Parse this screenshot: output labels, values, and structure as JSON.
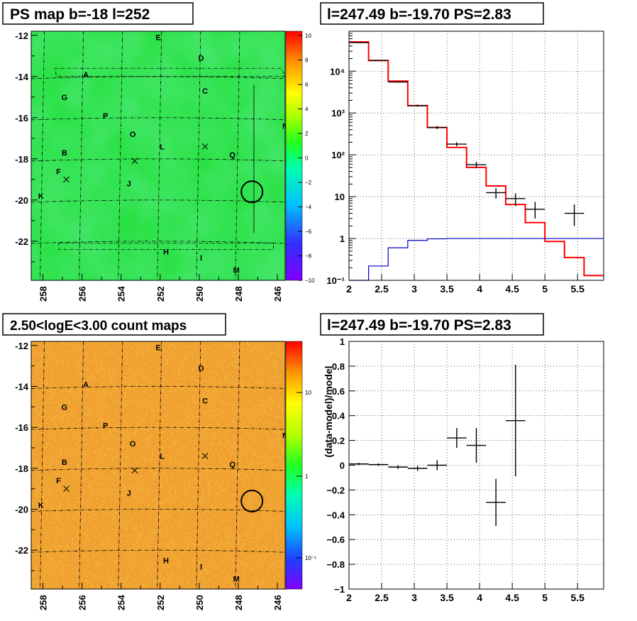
{
  "panels": {
    "ps_map": {
      "title": "PS map b=-18 l=252",
      "x_ticks": [
        "258",
        "256",
        "254",
        "252",
        "250",
        "248",
        "246"
      ],
      "y_ticks": [
        "-12",
        "-14",
        "-16",
        "-18",
        "-20",
        "-22"
      ],
      "colorbar_ticks": [
        "10",
        "8",
        "6",
        "4",
        "2",
        "0",
        "−2",
        "−4",
        "−6",
        "−8",
        "−10"
      ],
      "colorbar_range": [
        -10,
        10
      ],
      "map_color": "#22e03a"
    },
    "count_map": {
      "title": "2.50<logE<3.00 count maps",
      "x_ticks": [
        "258",
        "256",
        "254",
        "252",
        "250",
        "248",
        "246"
      ],
      "y_ticks": [
        "-12",
        "-14",
        "-16",
        "-18",
        "-20",
        "-22"
      ],
      "colorbar_ticks": [
        "10",
        "1",
        "10⁻¹"
      ],
      "map_color": "#f0a030"
    }
  },
  "sources": [
    {
      "label": "A",
      "l": 255.8,
      "b": -13.9
    },
    {
      "label": "B",
      "l": 256.9,
      "b": -17.7
    },
    {
      "label": "C",
      "l": 249.7,
      "b": -14.7
    },
    {
      "label": "D",
      "l": 249.9,
      "b": -13.1
    },
    {
      "label": "E",
      "l": 252.1,
      "b": -12.1
    },
    {
      "label": "F",
      "l": 257.2,
      "b": -18.6
    },
    {
      "label": "G",
      "l": 256.9,
      "b": -15.0
    },
    {
      "label": "H",
      "l": 251.7,
      "b": -22.5
    },
    {
      "label": "I",
      "l": 249.9,
      "b": -22.8
    },
    {
      "label": "J",
      "l": 253.6,
      "b": -19.2
    },
    {
      "label": "K",
      "l": 258.1,
      "b": -19.8
    },
    {
      "label": "L",
      "l": 251.9,
      "b": -17.4
    },
    {
      "label": "M",
      "l": 248.1,
      "b": -23.4
    },
    {
      "label": "N",
      "l": 245.6,
      "b": -16.4
    },
    {
      "label": "O",
      "l": 253.4,
      "b": -16.8
    },
    {
      "label": "P",
      "l": 254.8,
      "b": -15.9
    },
    {
      "label": "Q",
      "l": 248.3,
      "b": -17.8
    }
  ],
  "crosses": [
    {
      "l": 256.8,
      "b": -19.0
    },
    {
      "l": 253.3,
      "b": -18.1
    },
    {
      "l": 249.7,
      "b": -17.4
    }
  ],
  "circle": {
    "l": 247.3,
    "b": -19.6
  },
  "chart_data": [
    {
      "type": "line",
      "title": "l=247.49 b=-19.70 PS=2.83",
      "xlabel": "",
      "ylabel": "",
      "xlim": [
        2,
        5.9
      ],
      "ylim": [
        0.1,
        90000
      ],
      "yscale": "log",
      "x_ticks": [
        "2",
        "2.5",
        "3",
        "3.5",
        "4",
        "4.5",
        "5",
        "5.5"
      ],
      "y_ticks": [
        "10⁻¹",
        "1",
        "10",
        "10²",
        "10³",
        "10⁴"
      ],
      "grid": true,
      "bin_edges": [
        2.0,
        2.3,
        2.6,
        2.9,
        3.2,
        3.5,
        3.8,
        4.1,
        4.4,
        4.7,
        5.0,
        5.3,
        5.6,
        5.9
      ],
      "series": [
        {
          "color": "#ff0000",
          "values": [
            50000,
            18000,
            5800,
            1500,
            450,
            150,
            50,
            18,
            6.5,
            2.4,
            0.85,
            0.35,
            0.13
          ]
        },
        {
          "color": "#0000cc",
          "values": [
            0.1,
            0.22,
            0.6,
            0.9,
            0.98,
            1.0,
            1.0,
            1.0,
            1.0,
            1.0,
            1.0,
            1.0,
            1.0
          ]
        },
        {
          "color": "#000000",
          "points": [
            {
              "x": 2.15,
              "y": 48000,
              "xerr": 0.15,
              "ylo": 47000,
              "yhi": 49000
            },
            {
              "x": 2.45,
              "y": 18000,
              "xerr": 0.15,
              "ylo": 17600,
              "yhi": 18400
            },
            {
              "x": 2.75,
              "y": 5500,
              "xerr": 0.15,
              "ylo": 5300,
              "yhi": 5700
            },
            {
              "x": 3.05,
              "y": 1500,
              "xerr": 0.15,
              "ylo": 1420,
              "yhi": 1580
            },
            {
              "x": 3.35,
              "y": 450,
              "xerr": 0.15,
              "ylo": 410,
              "yhi": 490
            },
            {
              "x": 3.65,
              "y": 180,
              "xerr": 0.15,
              "ylo": 160,
              "yhi": 200
            },
            {
              "x": 3.95,
              "y": 58,
              "xerr": 0.15,
              "ylo": 48,
              "yhi": 68
            },
            {
              "x": 4.25,
              "y": 12.5,
              "xerr": 0.15,
              "ylo": 9,
              "yhi": 16
            },
            {
              "x": 4.55,
              "y": 9,
              "xerr": 0.15,
              "ylo": 6,
              "yhi": 12
            },
            {
              "x": 4.85,
              "y": 5,
              "xerr": 0.15,
              "ylo": 3,
              "yhi": 7.5
            },
            {
              "x": 5.45,
              "y": 4,
              "xerr": 0.15,
              "ylo": 2,
              "yhi": 6.5
            }
          ]
        }
      ]
    },
    {
      "type": "scatter",
      "title": "l=247.49 b=-19.70 PS=2.83",
      "xlabel": "",
      "ylabel": "(data-model)/model",
      "xlim": [
        2,
        5.9
      ],
      "ylim": [
        -1,
        1
      ],
      "x_ticks": [
        "2",
        "2.5",
        "3",
        "3.5",
        "4",
        "4.5",
        "5",
        "5.5"
      ],
      "y_ticks": [
        "−1",
        "−0.8",
        "−0.6",
        "−0.4",
        "−0.2",
        "0",
        "0.2",
        "0.4",
        "0.6",
        "0.8",
        "1"
      ],
      "grid": true,
      "points": [
        {
          "x": 2.15,
          "y": 0.01,
          "xerr": 0.15,
          "yerr": 0.01
        },
        {
          "x": 2.45,
          "y": 0.005,
          "xerr": 0.15,
          "yerr": 0.01
        },
        {
          "x": 2.75,
          "y": -0.015,
          "xerr": 0.15,
          "yerr": 0.015
        },
        {
          "x": 3.05,
          "y": -0.025,
          "xerr": 0.15,
          "yerr": 0.02
        },
        {
          "x": 3.35,
          "y": 0.0,
          "xerr": 0.15,
          "yerr": 0.04
        },
        {
          "x": 3.65,
          "y": 0.22,
          "xerr": 0.15,
          "yerr": 0.08
        },
        {
          "x": 3.95,
          "y": 0.16,
          "xerr": 0.15,
          "yerr": 0.14
        },
        {
          "x": 4.25,
          "y": -0.3,
          "xerr": 0.15,
          "yerr": 0.19
        },
        {
          "x": 4.55,
          "y": 0.36,
          "xerr": 0.15,
          "yerr": 0.45
        }
      ]
    }
  ]
}
